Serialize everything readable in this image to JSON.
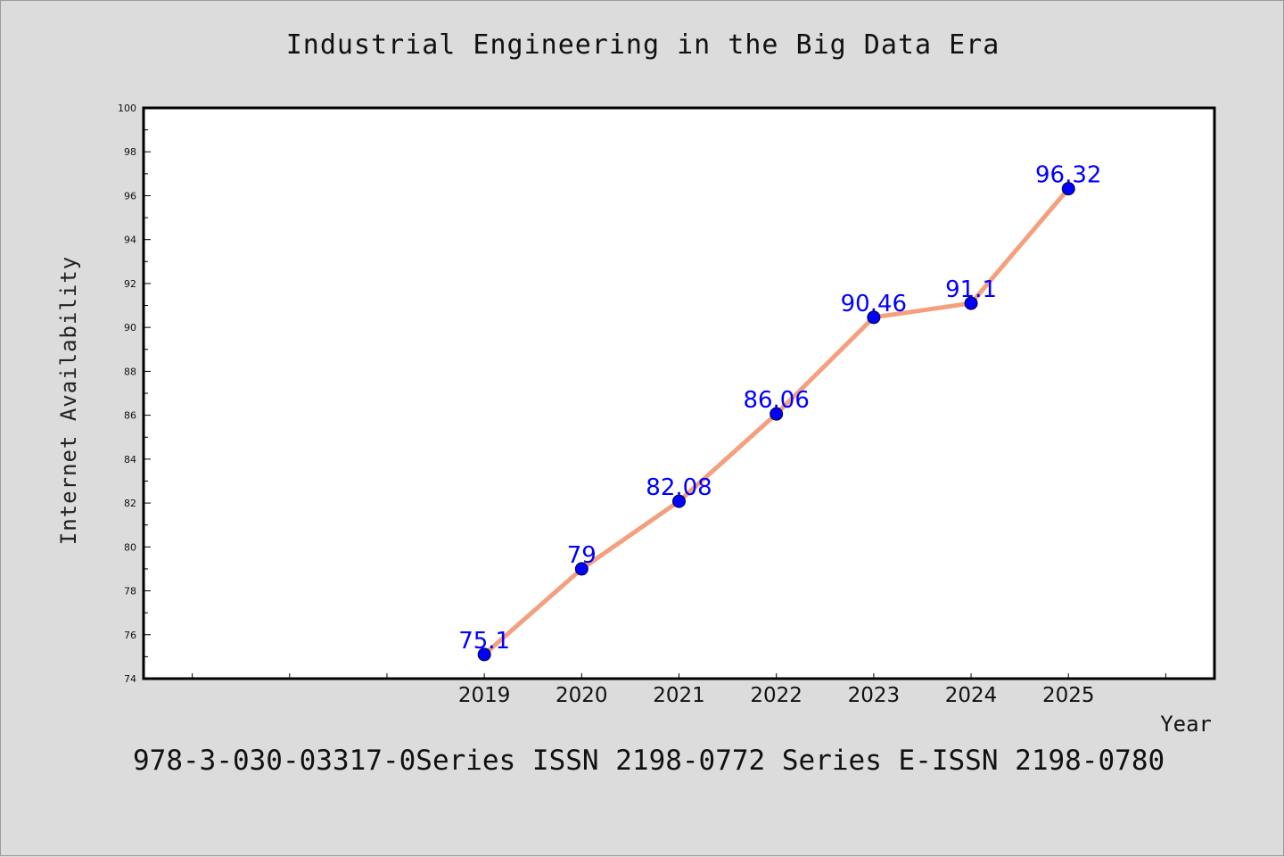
{
  "chart_data": {
    "type": "line",
    "title": "Industrial Engineering in the Big Data Era",
    "xlabel": "Year",
    "ylabel": "Internet Availability",
    "x": [
      "2019",
      "2020",
      "2021",
      "2022",
      "2023",
      "2024",
      "2025"
    ],
    "series": [
      {
        "values": [
          75.1,
          79,
          82.08,
          86.06,
          90.46,
          91.1,
          96.32
        ],
        "data_labels": [
          "75.1",
          "79",
          "82.08",
          "86.06",
          "90.46",
          "91.1",
          "96.32"
        ]
      }
    ],
    "ylim": [
      74,
      100
    ],
    "xlim": [
      2015.5,
      2026.5
    ],
    "yticks": [
      74,
      76,
      78,
      80,
      82,
      84,
      86,
      88,
      90,
      92,
      94,
      96,
      98,
      100
    ],
    "ytick_labels": [
      "74",
      "76",
      "78",
      "80",
      "82",
      "84",
      "86",
      "88",
      "90",
      "92",
      "94",
      "96",
      "98",
      "100"
    ],
    "grid": false,
    "line_color": "#f4a07e",
    "marker_color": "#0000ff",
    "label_color": "#0000ff"
  },
  "footer": "978-3-030-03317-0Series ISSN 2198-0772 Series E-ISSN 2198-0780"
}
